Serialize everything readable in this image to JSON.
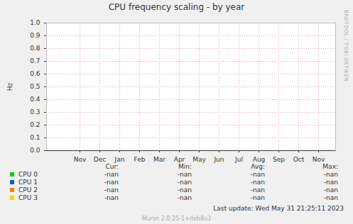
{
  "chart_data": {
    "type": "line",
    "title": "CPU frequency scaling - by year",
    "y_label": "Hz",
    "categories": [
      "Nov",
      "Dec",
      "Jan",
      "Feb",
      "Mar",
      "Apr",
      "May",
      "Jun",
      "Jul",
      "Aug",
      "Sep",
      "Oct",
      "Nov"
    ],
    "series": [
      {
        "name": "CPU 0",
        "color": "#00cc00",
        "values": [
          null,
          null,
          null,
          null,
          null,
          null,
          null,
          null,
          null,
          null,
          null,
          null,
          null
        ],
        "stats": [
          "-nan",
          "-nan",
          "-nan",
          "-nan"
        ]
      },
      {
        "name": "CPU 1",
        "color": "#0066b3",
        "values": [
          null,
          null,
          null,
          null,
          null,
          null,
          null,
          null,
          null,
          null,
          null,
          null,
          null
        ],
        "stats": [
          "-nan",
          "-nan",
          "-nan",
          "-nan"
        ]
      },
      {
        "name": "CPU 2",
        "color": "#ff8000",
        "values": [
          null,
          null,
          null,
          null,
          null,
          null,
          null,
          null,
          null,
          null,
          null,
          null,
          null
        ],
        "stats": [
          "-nan",
          "-nan",
          "-nan",
          "-nan"
        ]
      },
      {
        "name": "CPU 3",
        "color": "#ffcc00",
        "values": [
          null,
          null,
          null,
          null,
          null,
          null,
          null,
          null,
          null,
          null,
          null,
          null,
          null
        ],
        "stats": [
          "-nan",
          "-nan",
          "-nan",
          "-nan"
        ]
      }
    ],
    "stats_columns": [
      "Cur:",
      "Min:",
      "Avg:",
      "Max:"
    ],
    "ylim": [
      0,
      1
    ],
    "yticks": [
      {
        "value": 0,
        "label": "0.0"
      },
      {
        "value": 0.1,
        "label": "0.1"
      },
      {
        "value": 0.2,
        "label": "0.2"
      },
      {
        "value": 0.3,
        "label": "0.3"
      },
      {
        "value": 0.4,
        "label": "0.4"
      },
      {
        "value": 0.5,
        "label": "0.5"
      },
      {
        "value": 0.6,
        "label": "0.6"
      },
      {
        "value": 0.7,
        "label": "0.7"
      },
      {
        "value": 0.8,
        "label": "0.8"
      },
      {
        "value": 0.9,
        "label": "0.9"
      },
      {
        "value": 1,
        "label": "1.0"
      }
    ],
    "grid": true,
    "watermark": "RRDTOOL / TOBI OETIKER",
    "footer": [
      "Last update: Wed May 31 21:25:11 2023",
      "Munin 2.0.25-1+deb8u3"
    ]
  }
}
